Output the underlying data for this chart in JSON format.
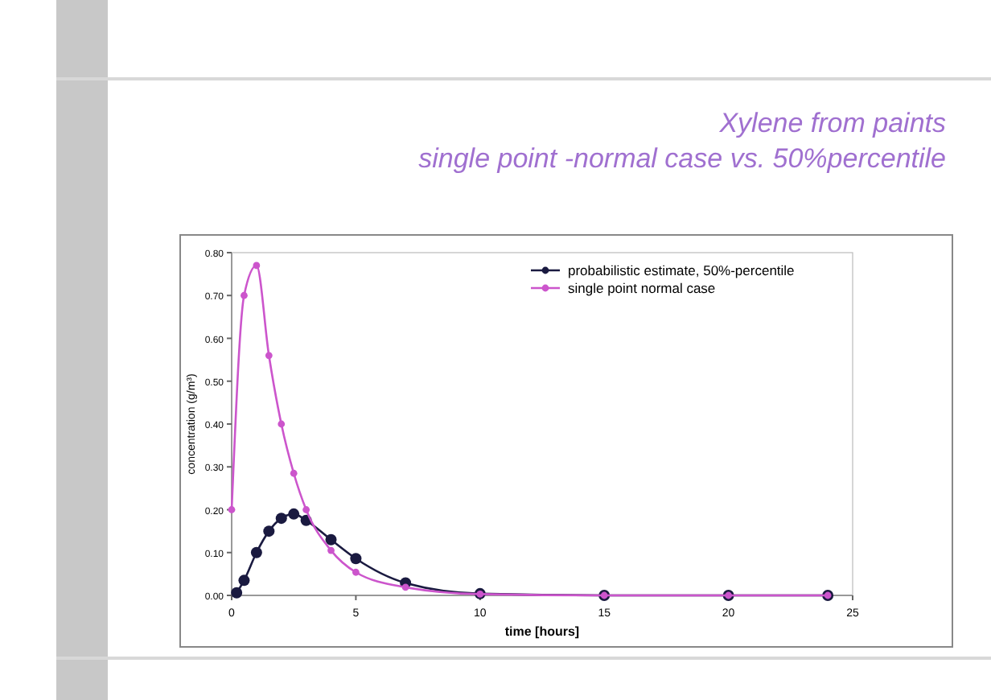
{
  "chart_data": {
    "type": "line",
    "title": "Xylene from paints",
    "subtitle": "single point -normal case vs. 50%percentile",
    "xlabel": "time [hours]",
    "ylabel": "concentration (g/m³)",
    "xlim": [
      0,
      25
    ],
    "xticks": [
      0,
      5,
      10,
      15,
      20,
      25
    ],
    "ylim": [
      0,
      0.8
    ],
    "yticks": [
      {
        "value": 0,
        "label": "0.00"
      },
      {
        "value": 0.1,
        "label": "0.10"
      },
      {
        "value": 0.2,
        "label": "0.20"
      },
      {
        "value": 0.3,
        "label": "0.30"
      },
      {
        "value": 0.4,
        "label": "0.40"
      },
      {
        "value": 0.5,
        "label": "0.50"
      },
      {
        "value": 0.6,
        "label": "0.60"
      },
      {
        "value": 0.7,
        "label": "0.70"
      },
      {
        "value": 0.8,
        "label": "0.80"
      }
    ],
    "grid": false,
    "legend": "top right",
    "marker": "circle",
    "line_style": "solid",
    "series": [
      {
        "name": "probabilistic estimate, 50%-percentile",
        "color": "#1a1a40",
        "x": [
          0.2,
          0.5,
          1,
          1.5,
          2,
          2.5,
          3,
          4,
          5,
          7,
          10,
          15,
          20,
          24
        ],
        "values": [
          0.006,
          0.035,
          0.1,
          0.15,
          0.18,
          0.19,
          0.175,
          0.13,
          0.086,
          0.029,
          0.004,
          0,
          0,
          0
        ]
      },
      {
        "name": "single point normal case",
        "color": "#cc55cc",
        "x": [
          0,
          0.5,
          1,
          1.5,
          2,
          2.5,
          3,
          4,
          5,
          7,
          10,
          15,
          20,
          24
        ],
        "values": [
          0.2,
          0.7,
          0.77,
          0.56,
          0.4,
          0.285,
          0.2,
          0.105,
          0.054,
          0.019,
          0.003,
          0,
          0,
          0
        ]
      }
    ]
  }
}
